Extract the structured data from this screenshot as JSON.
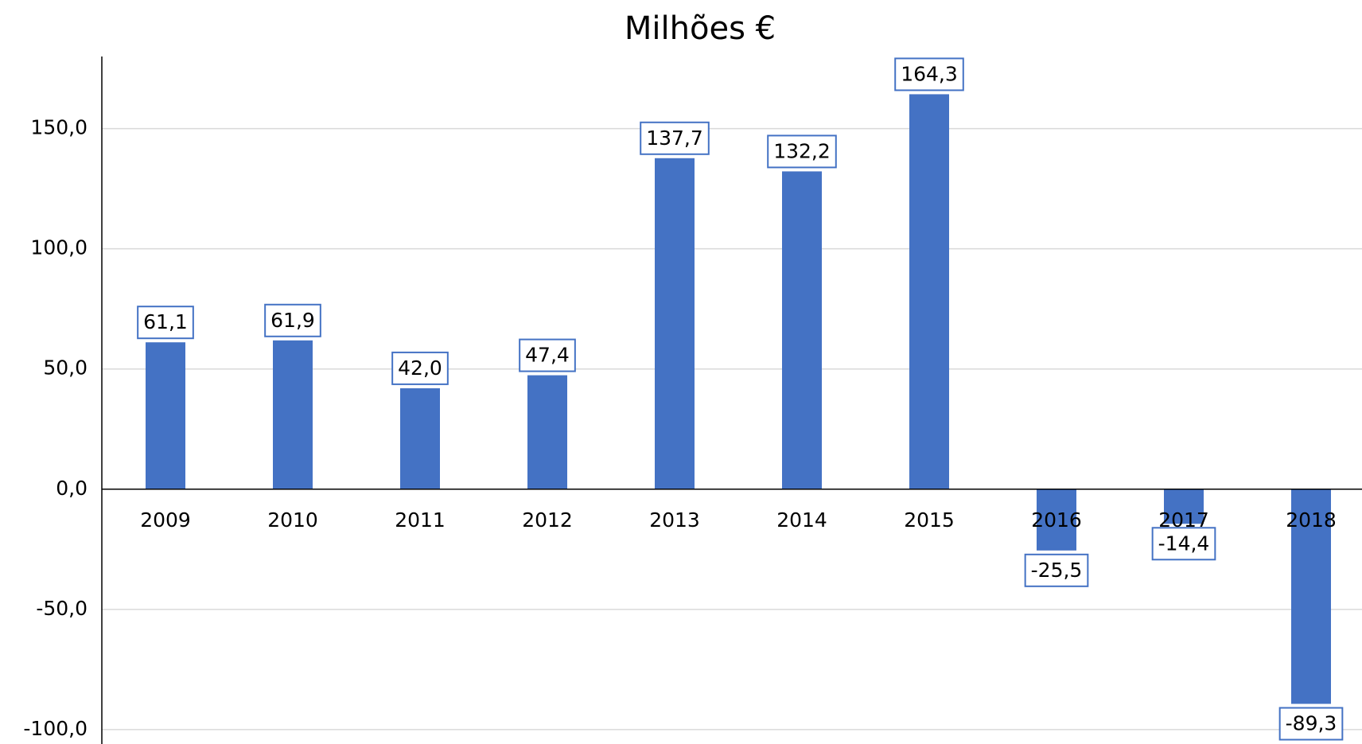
{
  "chart_data": {
    "type": "bar",
    "title": "Milhões €",
    "categories": [
      "2009",
      "2010",
      "2011",
      "2012",
      "2013",
      "2014",
      "2015",
      "2016",
      "2017",
      "2018"
    ],
    "values": [
      61.1,
      61.9,
      42.0,
      47.4,
      137.7,
      132.2,
      164.3,
      -25.5,
      -14.4,
      -89.3
    ],
    "value_labels": [
      "61,1",
      "61,9",
      "42,0",
      "47,4",
      "137,7",
      "132,2",
      "164,3",
      "-25,5",
      "-14,4",
      "-89,3"
    ],
    "color": "#4472c4",
    "ylim": [
      -106,
      180
    ],
    "yticks": [
      {
        "value": -100,
        "label": "-100,0"
      },
      {
        "value": -50,
        "label": "-50,0"
      },
      {
        "value": 0,
        "label": "0,0"
      },
      {
        "value": 50,
        "label": "50,0"
      },
      {
        "value": 100,
        "label": "100,0"
      },
      {
        "value": 150,
        "label": "150,0"
      }
    ],
    "grid": true
  }
}
